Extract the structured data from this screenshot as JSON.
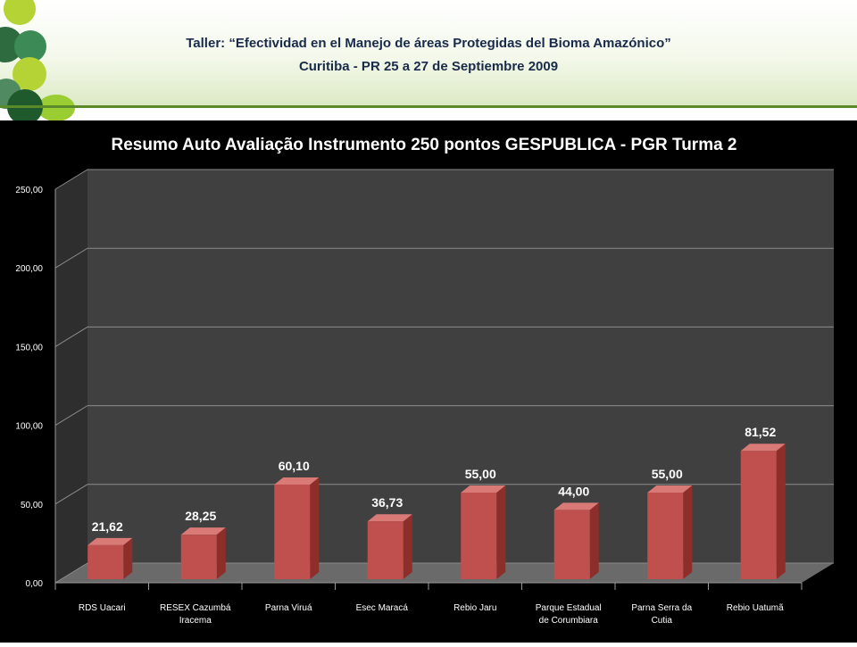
{
  "header": {
    "line1": "Taller: “Efectividad en el Manejo de áreas Protegidas del  Bioma Amazónico”",
    "line2": "Curitiba - PR 25 a 27 de Septiembre 2009"
  },
  "colors": {
    "bar_front": "#c0504d",
    "bar_side": "#8e2e2b",
    "bar_top": "#d97a77",
    "plot_bg": "#404040",
    "accent_green": "#9acd32",
    "dark_green": "#2e6b3e"
  },
  "chart_data": {
    "type": "bar",
    "title": "Resumo Auto Avaliação Instrumento 250 pontos GESPUBLICA - PGR Turma 2",
    "categories": [
      [
        "RDS Uacari"
      ],
      [
        "RESEX Cazumbá",
        "Iracema"
      ],
      [
        "Parna Viruá"
      ],
      [
        "Esec Maracá"
      ],
      [
        "Rebio Jaru"
      ],
      [
        "Parque Estadual",
        "de Corumbiara"
      ],
      [
        "Parna Serra da",
        "Cutia"
      ],
      [
        "Rebio Uatumã"
      ]
    ],
    "values": [
      21.62,
      28.25,
      60.1,
      36.73,
      55.0,
      44.0,
      55.0,
      81.52
    ],
    "value_labels": [
      "21,62",
      "28,25",
      "60,10",
      "36,73",
      "55,00",
      "44,00",
      "55,00",
      "81,52"
    ],
    "y_ticks": [
      "0,00",
      "50,00",
      "100,00",
      "150,00",
      "200,00",
      "250,00"
    ],
    "ylim": [
      0,
      250
    ],
    "xlabel": "",
    "ylabel": "",
    "grid": true,
    "legend": "none"
  }
}
